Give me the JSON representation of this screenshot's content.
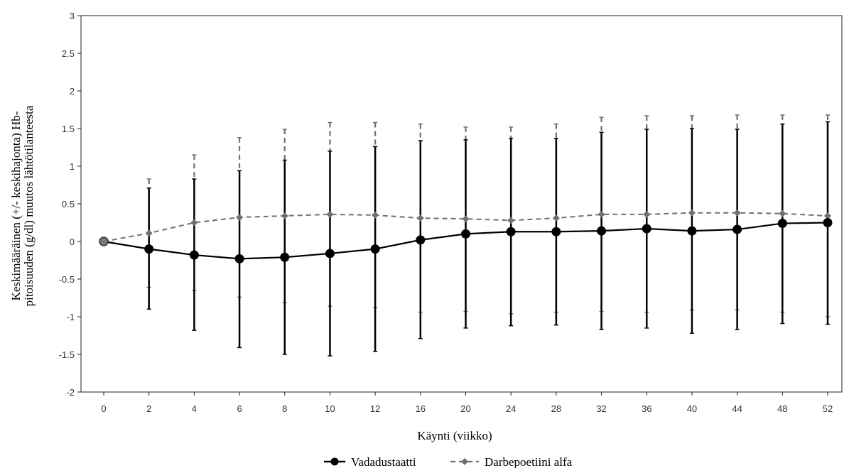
{
  "chart_data": {
    "type": "line",
    "categories": [
      "0",
      "2",
      "4",
      "6",
      "8",
      "10",
      "12",
      "16",
      "20",
      "24",
      "28",
      "32",
      "36",
      "40",
      "44",
      "48",
      "52"
    ],
    "xlabel": "Käynti (viikko)",
    "ylabel_lines": [
      "Keskimääräinen (+/- keskihajonta) Hb-",
      "pitoisuuden (g/dl) muutos lähtötilanteesta"
    ],
    "ylim": [
      -2,
      3
    ],
    "yticks": [
      "3",
      "2.5",
      "2",
      "1.5",
      "1",
      "0.5",
      "0",
      "-0.5",
      "-1",
      "-1.5",
      "-2"
    ],
    "ytick_values": [
      3,
      2.5,
      2,
      1.5,
      1,
      0.5,
      0,
      -0.5,
      -1,
      -1.5,
      -2
    ],
    "grid": false,
    "legend_position": "bottom-center",
    "series": [
      {
        "name": "Vadadustaatti",
        "color": "#000000",
        "line_style": "solid",
        "marker": "circle",
        "values": [
          0,
          -0.1,
          -0.18,
          -0.23,
          -0.21,
          -0.16,
          -0.1,
          0.02,
          0.1,
          0.13,
          0.13,
          0.14,
          0.17,
          0.14,
          0.16,
          0.24,
          0.25
        ],
        "upper": [
          0,
          0.71,
          0.83,
          0.94,
          1.08,
          1.2,
          1.26,
          1.34,
          1.35,
          1.37,
          1.37,
          1.45,
          1.49,
          1.5,
          1.49,
          1.56,
          1.59
        ],
        "lower": [
          0,
          -0.9,
          -1.18,
          -1.41,
          -1.5,
          -1.52,
          -1.46,
          -1.29,
          -1.15,
          -1.12,
          -1.11,
          -1.17,
          -1.15,
          -1.22,
          -1.17,
          -1.09,
          -1.1
        ]
      },
      {
        "name": "Darbepoetiini alfa",
        "color": "#707070",
        "line_style": "dashed",
        "marker": "diamond",
        "values": [
          0,
          0.11,
          0.25,
          0.32,
          0.34,
          0.36,
          0.35,
          0.31,
          0.3,
          0.28,
          0.31,
          0.36,
          0.36,
          0.38,
          0.38,
          0.37,
          0.34
        ],
        "upper": [
          0,
          0.83,
          1.15,
          1.38,
          1.49,
          1.58,
          1.58,
          1.56,
          1.52,
          1.52,
          1.56,
          1.65,
          1.67,
          1.67,
          1.68,
          1.68,
          1.68
        ],
        "lower": [
          0,
          -0.61,
          -0.65,
          -0.74,
          -0.81,
          -0.86,
          -0.88,
          -0.94,
          -0.93,
          -0.96,
          -0.94,
          -0.93,
          -0.94,
          -0.91,
          -0.91,
          -0.94,
          -1.0
        ]
      }
    ]
  }
}
